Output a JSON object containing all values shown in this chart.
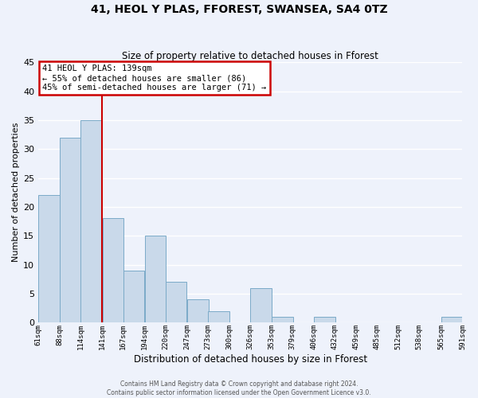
{
  "title": "41, HEOL Y PLAS, FFOREST, SWANSEA, SA4 0TZ",
  "subtitle": "Size of property relative to detached houses in Fforest",
  "xlabel": "Distribution of detached houses by size in Fforest",
  "ylabel": "Number of detached properties",
  "bar_color": "#c9d9ea",
  "bar_edge_color": "#7baac8",
  "background_color": "#eef2fb",
  "grid_color": "#ffffff",
  "vline_value": 141,
  "vline_color": "#cc0000",
  "bins_left": [
    61,
    88,
    114,
    141,
    167,
    194,
    220,
    247,
    273,
    300,
    326,
    353,
    379,
    406,
    432,
    459,
    485,
    512,
    538,
    565
  ],
  "bin_width": 27,
  "counts": [
    22,
    32,
    35,
    18,
    9,
    15,
    7,
    4,
    2,
    0,
    6,
    1,
    0,
    1,
    0,
    0,
    0,
    0,
    0,
    1
  ],
  "tick_labels": [
    "61sqm",
    "88sqm",
    "114sqm",
    "141sqm",
    "167sqm",
    "194sqm",
    "220sqm",
    "247sqm",
    "273sqm",
    "300sqm",
    "326sqm",
    "353sqm",
    "379sqm",
    "406sqm",
    "432sqm",
    "459sqm",
    "485sqm",
    "512sqm",
    "538sqm",
    "565sqm",
    "591sqm"
  ],
  "ylim": [
    0,
    45
  ],
  "yticks": [
    0,
    5,
    10,
    15,
    20,
    25,
    30,
    35,
    40,
    45
  ],
  "annotation_title": "41 HEOL Y PLAS: 139sqm",
  "annotation_line1": "← 55% of detached houses are smaller (86)",
  "annotation_line2": "45% of semi-detached houses are larger (71) →",
  "annotation_box_color": "#ffffff",
  "annotation_box_edge": "#cc0000",
  "footer1": "Contains HM Land Registry data © Crown copyright and database right 2024.",
  "footer2": "Contains public sector information licensed under the Open Government Licence v3.0."
}
